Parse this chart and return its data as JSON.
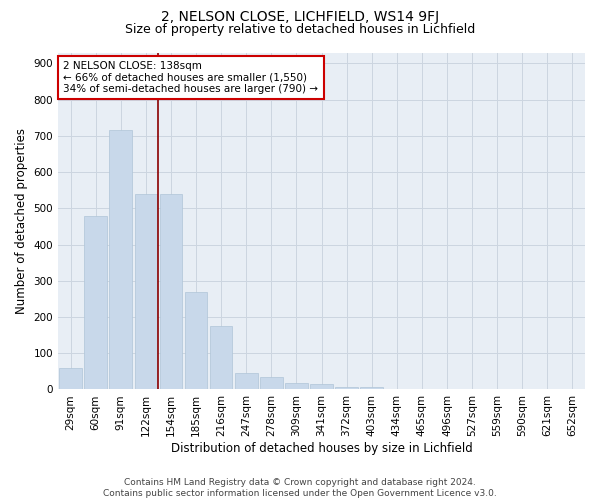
{
  "title1": "2, NELSON CLOSE, LICHFIELD, WS14 9FJ",
  "title2": "Size of property relative to detached houses in Lichfield",
  "xlabel": "Distribution of detached houses by size in Lichfield",
  "ylabel": "Number of detached properties",
  "categories": [
    "29sqm",
    "60sqm",
    "91sqm",
    "122sqm",
    "154sqm",
    "185sqm",
    "216sqm",
    "247sqm",
    "278sqm",
    "309sqm",
    "341sqm",
    "372sqm",
    "403sqm",
    "434sqm",
    "465sqm",
    "496sqm",
    "527sqm",
    "559sqm",
    "590sqm",
    "621sqm",
    "652sqm"
  ],
  "values": [
    60,
    480,
    715,
    540,
    540,
    270,
    175,
    45,
    35,
    18,
    15,
    8,
    8,
    0,
    0,
    0,
    0,
    0,
    0,
    0,
    0
  ],
  "bar_color": "#c8d8ea",
  "bar_edge_color": "#b0c5d8",
  "vline_color": "#8b0000",
  "annotation_text": "2 NELSON CLOSE: 138sqm\n← 66% of detached houses are smaller (1,550)\n34% of semi-detached houses are larger (790) →",
  "annotation_box_color": "white",
  "annotation_box_edge": "#cc0000",
  "ylim": [
    0,
    930
  ],
  "yticks": [
    0,
    100,
    200,
    300,
    400,
    500,
    600,
    700,
    800,
    900
  ],
  "grid_color": "#ccd5e0",
  "background_color": "#e8eef5",
  "footer_text": "Contains HM Land Registry data © Crown copyright and database right 2024.\nContains public sector information licensed under the Open Government Licence v3.0.",
  "title1_fontsize": 10,
  "title2_fontsize": 9,
  "xlabel_fontsize": 8.5,
  "ylabel_fontsize": 8.5,
  "tick_fontsize": 7.5,
  "annotation_fontsize": 7.5,
  "footer_fontsize": 6.5
}
